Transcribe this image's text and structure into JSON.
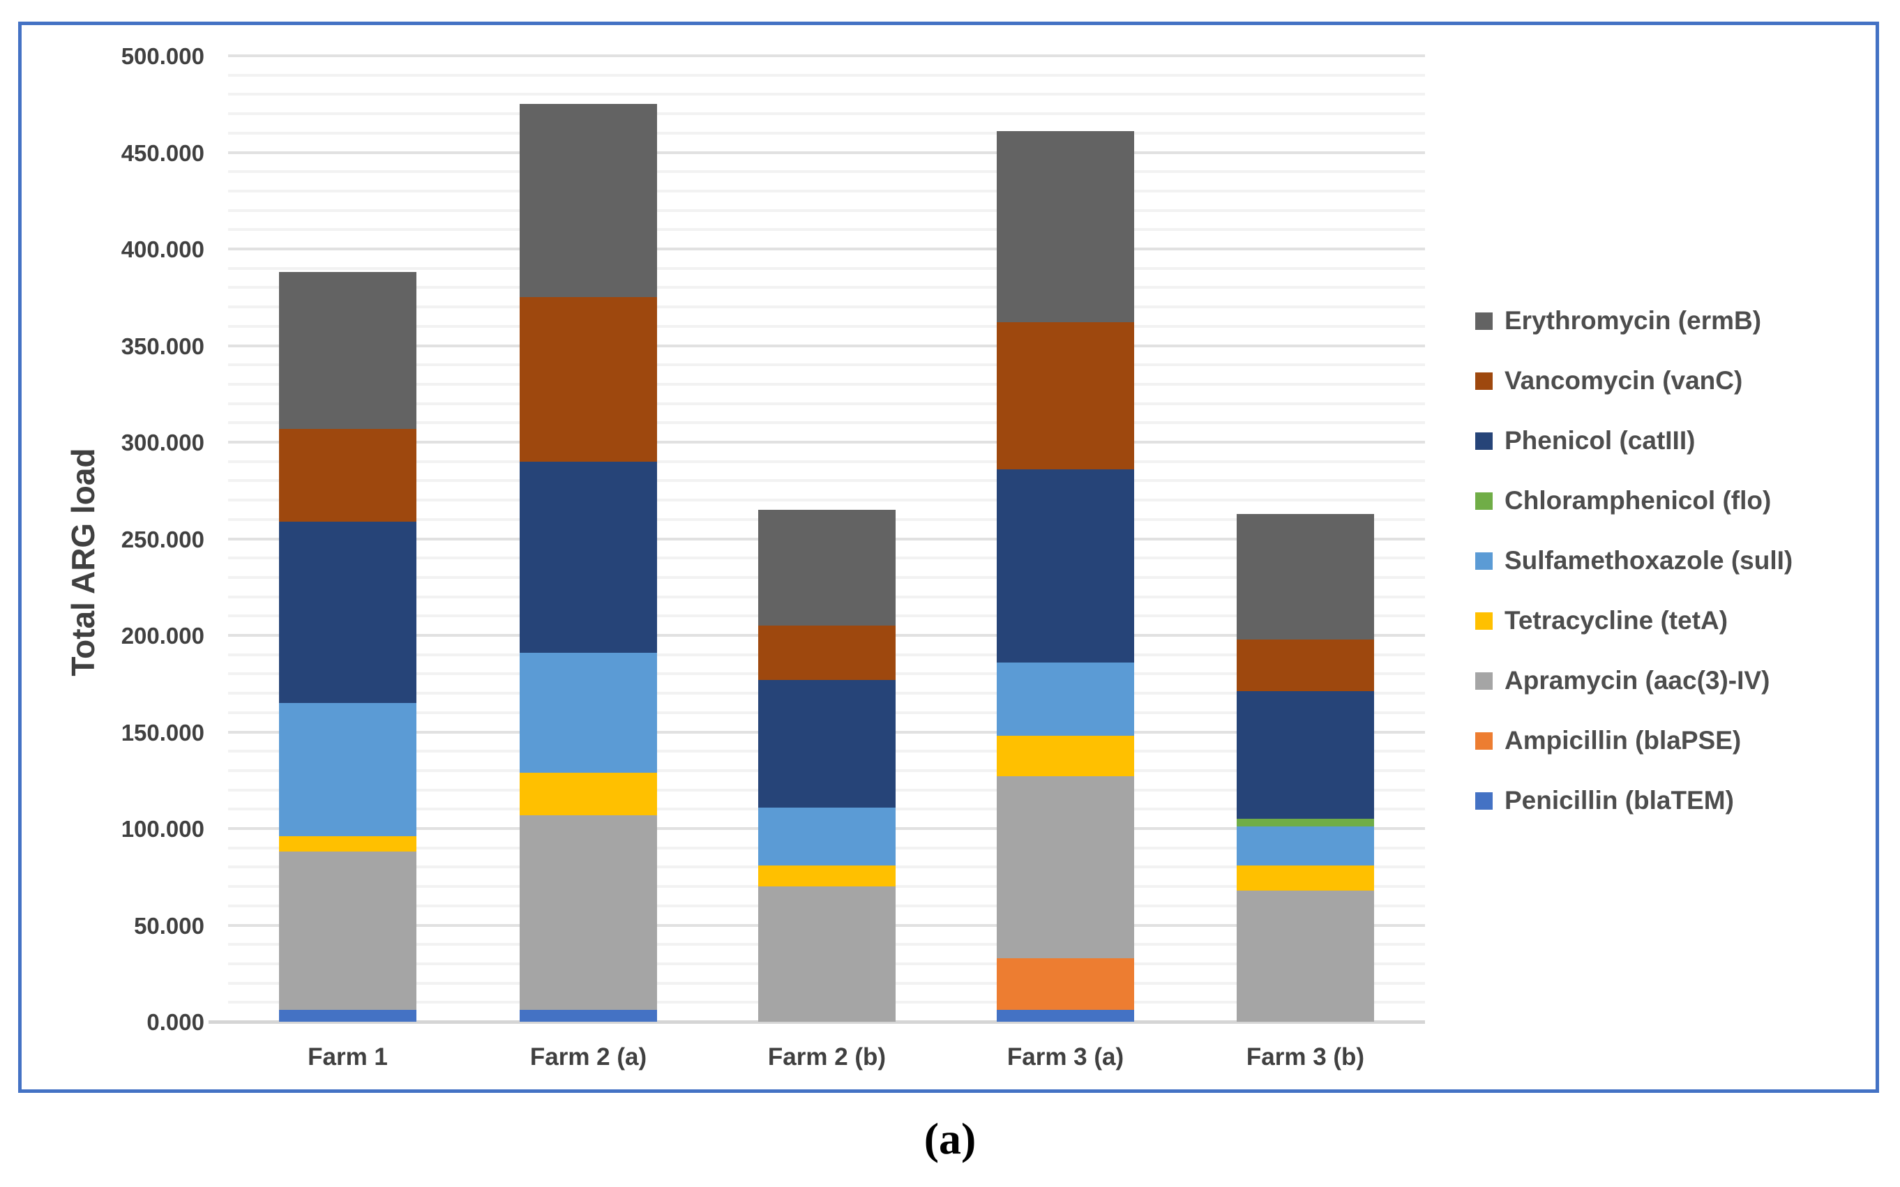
{
  "figure": {
    "caption": "(a)",
    "border_color": "#4472C4",
    "text_color": "#404040"
  },
  "chart_data": {
    "type": "bar",
    "stacked": true,
    "title": "",
    "xlabel": "",
    "ylabel": "Total ARG load",
    "ylim": [
      0,
      500
    ],
    "grid": {
      "visible": true,
      "major_step": 50,
      "minor_step": 10
    },
    "legend_position": "right",
    "yticks": [
      {
        "value": 0,
        "label": "0.000"
      },
      {
        "value": 50,
        "label": "50.000"
      },
      {
        "value": 100,
        "label": "100.000"
      },
      {
        "value": 150,
        "label": "150.000"
      },
      {
        "value": 200,
        "label": "200.000"
      },
      {
        "value": 250,
        "label": "250.000"
      },
      {
        "value": 300,
        "label": "300.000"
      },
      {
        "value": 350,
        "label": "350.000"
      },
      {
        "value": 400,
        "label": "400.000"
      },
      {
        "value": 450,
        "label": "450.000"
      },
      {
        "value": 500,
        "label": "500.000"
      }
    ],
    "categories": [
      "Farm 1",
      "Farm 2 (a)",
      "Farm 2 (b)",
      "Farm 3 (a)",
      "Farm 3 (b)"
    ],
    "series_bottom_to_top": [
      {
        "name": "Penicillin (blaTEM)",
        "color": "#4472C4",
        "values": [
          6,
          6,
          0,
          6,
          0
        ]
      },
      {
        "name": "Ampicillin (blaPSE)",
        "color": "#ED7D31",
        "values": [
          0,
          0,
          0,
          27,
          0
        ]
      },
      {
        "name": "Apramycin (aac(3)-IV)",
        "color": "#A5A5A5",
        "values": [
          82,
          101,
          70,
          94,
          68
        ]
      },
      {
        "name": "Tetracycline (tetA)",
        "color": "#FFC000",
        "values": [
          8,
          22,
          11,
          21,
          13
        ]
      },
      {
        "name": "Sulfamethoxazole (sulI)",
        "color": "#5B9BD5",
        "values": [
          69,
          62,
          30,
          38,
          20
        ]
      },
      {
        "name": "Chloramphenicol (flo)",
        "color": "#70AD47",
        "values": [
          0,
          0,
          0,
          0,
          4
        ]
      },
      {
        "name": "Phenicol (catIII)",
        "color": "#264478",
        "values": [
          94,
          99,
          66,
          100,
          66
        ]
      },
      {
        "name": "Vancomycin (vanC)",
        "color": "#9E480E",
        "values": [
          48,
          85,
          28,
          76,
          27
        ]
      },
      {
        "name": "Erythromycin (ermB)",
        "color": "#636363",
        "values": [
          81,
          100,
          60,
          99,
          65
        ]
      }
    ],
    "totals": [
      388,
      475,
      265,
      461,
      263
    ],
    "legend_top_to_bottom": [
      "Erythromycin (ermB)",
      "Vancomycin (vanC)",
      "Phenicol (catIII)",
      "Chloramphenicol (flo)",
      "Sulfamethoxazole (sulI)",
      "Tetracycline (tetA)",
      "Apramycin (aac(3)-IV)",
      "Ampicillin (blaPSE)",
      "Penicillin (blaTEM)"
    ]
  }
}
